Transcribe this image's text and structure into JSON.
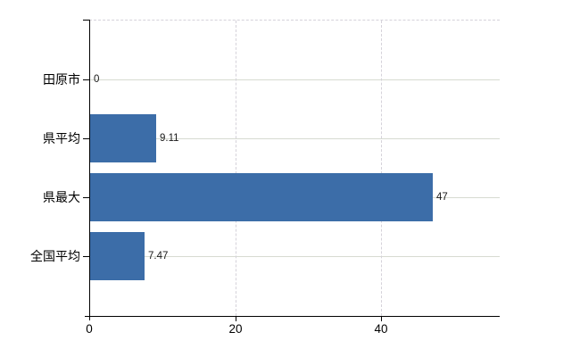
{
  "chart_data": {
    "type": "bar",
    "orientation": "horizontal",
    "title": "",
    "categories": [
      "田原市",
      "県平均",
      "県最大",
      "全国平均"
    ],
    "values": [
      0,
      9.11,
      47,
      7.47
    ],
    "value_labels": [
      "0",
      "9.11",
      "47",
      "7.47"
    ],
    "x_ticks": [
      0,
      20,
      40
    ],
    "x_tick_labels": [
      "0",
      "20",
      "40"
    ],
    "xlim": [
      0,
      56.3
    ],
    "grid": "on",
    "legend": "none",
    "colors": {
      "bar": "#3c6da8",
      "grid_horizontal_solid": "#d7dbd1",
      "grid_vertical_dashed": "#d5d2da",
      "plot_top_border_dashed": "#d5d2da",
      "axis": "#000000",
      "text": "#000000"
    }
  }
}
